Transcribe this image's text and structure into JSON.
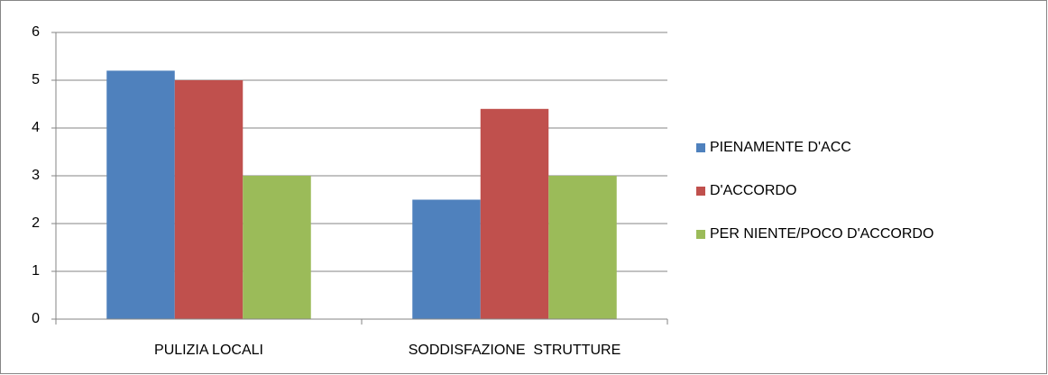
{
  "chart_data": {
    "type": "bar",
    "categories": [
      "PULIZIA LOCALI",
      "SODDISFAZIONE  STRUTTURE"
    ],
    "series": [
      {
        "name": "PIENAMENTE D'ACC",
        "color": "#4f81bd",
        "values": [
          5.2,
          2.5
        ]
      },
      {
        "name": "D'ACCORDO",
        "color": "#c0504d",
        "values": [
          5.0,
          4.4
        ]
      },
      {
        "name": "PER NIENTE/POCO D'ACCORDO",
        "color": "#9bbb59",
        "values": [
          3.0,
          3.0
        ]
      }
    ],
    "ylim": [
      0,
      6
    ],
    "yticks": [
      0,
      1,
      2,
      3,
      4,
      5,
      6
    ],
    "grid": true,
    "legend": "right"
  }
}
